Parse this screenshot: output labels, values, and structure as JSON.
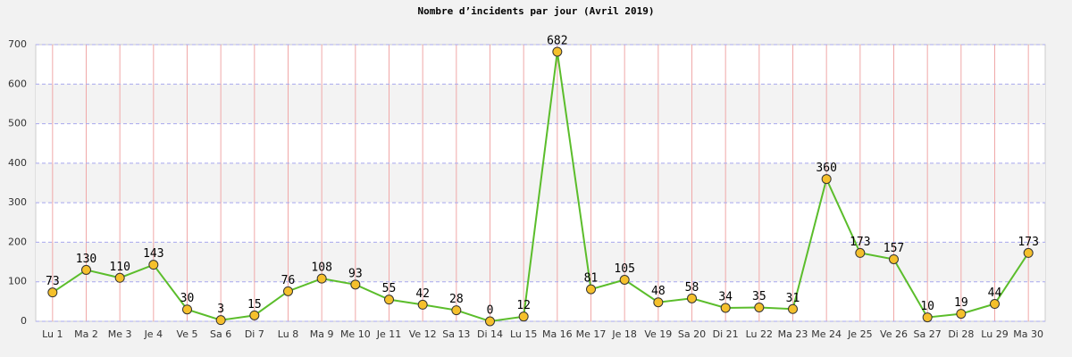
{
  "chart_data": {
    "type": "line",
    "title": "Nombre d’incidents par jour (Avril 2019)",
    "categories": [
      "Lu 1",
      "Ma 2",
      "Me 3",
      "Je 4",
      "Ve 5",
      "Sa 6",
      "Di 7",
      "Lu 8",
      "Ma 9",
      "Me 10",
      "Je 11",
      "Ve 12",
      "Sa 13",
      "Di 14",
      "Lu 15",
      "Ma 16",
      "Me 17",
      "Je 18",
      "Ve 19",
      "Sa 20",
      "Di 21",
      "Lu 22",
      "Ma 23",
      "Me 24",
      "Je 25",
      "Ve 26",
      "Sa 27",
      "Di 28",
      "Lu 29",
      "Ma 30"
    ],
    "values": [
      73,
      130,
      110,
      143,
      30,
      3,
      15,
      76,
      108,
      93,
      55,
      42,
      28,
      0,
      12,
      682,
      81,
      105,
      48,
      58,
      34,
      35,
      31,
      360,
      173,
      157,
      10,
      19,
      44,
      173
    ],
    "color": "#5bbd2b",
    "marker_color": "#f5c02c",
    "ylim": [
      0,
      700
    ],
    "yticks": [
      0,
      100,
      200,
      300,
      400,
      500,
      600,
      700
    ],
    "grid": true
  }
}
